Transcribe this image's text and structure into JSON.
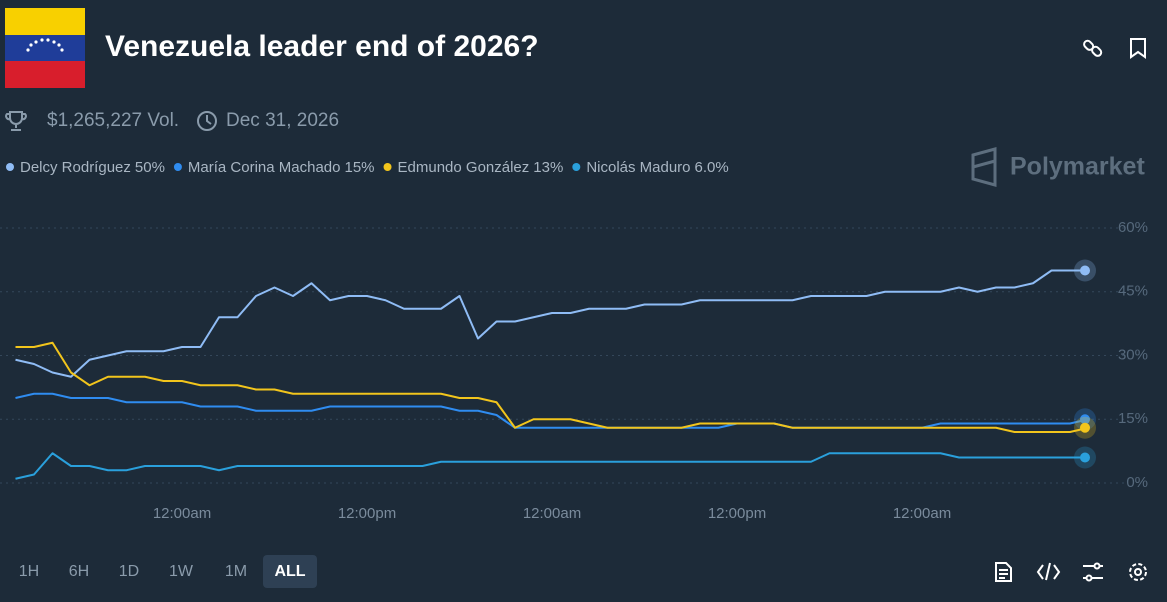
{
  "header": {
    "title": "Venezuela leader end of 2026?",
    "volume": "$1,265,227 Vol.",
    "end_date": "Dec 31, 2026"
  },
  "brand": "Polymarket",
  "time_ranges": [
    "1H",
    "6H",
    "1D",
    "1W",
    "1M",
    "ALL"
  ],
  "selected_range": "ALL",
  "chart_data": {
    "type": "line",
    "categories": [
      null,
      null,
      null,
      null,
      null,
      null,
      null,
      null,
      null,
      "12:00am",
      null,
      null,
      null,
      null,
      null,
      null,
      null,
      null,
      null,
      "12:00pm",
      null,
      null,
      null,
      null,
      null,
      null,
      null,
      null,
      null,
      "12:00am",
      null,
      null,
      null,
      null,
      null,
      null,
      null,
      null,
      null,
      "12:00pm",
      null,
      null,
      null,
      null,
      null,
      null,
      null,
      null,
      null,
      "12:00am",
      null,
      null,
      null,
      null,
      null,
      null,
      null,
      null,
      null
    ],
    "series": [
      {
        "name": "Delcy Rodríguez",
        "color": "#8fbcf5",
        "current": {
          "value": 50,
          "label": "50%"
        },
        "values": [
          29,
          28,
          26,
          25,
          29,
          30,
          31,
          31,
          31,
          32,
          32,
          39,
          39,
          44,
          46,
          44,
          47,
          43,
          44,
          44,
          43,
          41,
          41,
          41,
          44,
          34,
          38,
          38,
          39,
          40,
          40,
          41,
          41,
          41,
          42,
          42,
          42,
          43,
          43,
          43,
          43,
          43,
          43,
          44,
          44,
          44,
          44,
          45,
          45,
          45,
          45,
          46,
          45,
          46,
          46,
          47,
          50,
          50,
          50
        ]
      },
      {
        "name": "María Corina Machado",
        "color": "#2f8cf0",
        "current": {
          "value": 15,
          "label": "15%"
        },
        "values": [
          20,
          21,
          21,
          20,
          20,
          20,
          19,
          19,
          19,
          19,
          18,
          18,
          18,
          17,
          17,
          17,
          17,
          18,
          18,
          18,
          18,
          18,
          18,
          18,
          17,
          17,
          16,
          13,
          13,
          13,
          13,
          13,
          13,
          13,
          13,
          13,
          13,
          13,
          13,
          14,
          14,
          14,
          13,
          13,
          13,
          13,
          13,
          13,
          13,
          13,
          14,
          14,
          14,
          14,
          14,
          14,
          14,
          14,
          15
        ]
      },
      {
        "name": "Edmundo González",
        "color": "#f2c51c",
        "current": {
          "value": 13,
          "label": "13%"
        },
        "values": [
          32,
          32,
          33,
          26,
          23,
          25,
          25,
          25,
          24,
          24,
          23,
          23,
          23,
          22,
          22,
          21,
          21,
          21,
          21,
          21,
          21,
          21,
          21,
          21,
          20,
          20,
          19,
          13,
          15,
          15,
          15,
          14,
          13,
          13,
          13,
          13,
          13,
          14,
          14,
          14,
          14,
          14,
          13,
          13,
          13,
          13,
          13,
          13,
          13,
          13,
          13,
          13,
          13,
          13,
          12,
          12,
          12,
          12,
          13
        ]
      },
      {
        "name": "Nicolás Maduro",
        "color": "#2aa0dc",
        "current": {
          "value": 6,
          "label": "6.0%"
        },
        "values": [
          1,
          2,
          7,
          4,
          4,
          3,
          3,
          4,
          4,
          4,
          4,
          3,
          4,
          4,
          4,
          4,
          4,
          4,
          4,
          4,
          4,
          4,
          4,
          5,
          5,
          5,
          5,
          5,
          5,
          5,
          5,
          5,
          5,
          5,
          5,
          5,
          5,
          5,
          5,
          5,
          5,
          5,
          5,
          5,
          7,
          7,
          7,
          7,
          7,
          7,
          7,
          6,
          6,
          6,
          6,
          6,
          6,
          6,
          6
        ]
      }
    ],
    "ylim": [
      0,
      60
    ],
    "yticks": [
      {
        "value": 0,
        "label": "0%"
      },
      {
        "value": 15,
        "label": "15%"
      },
      {
        "value": 30,
        "label": "30%"
      },
      {
        "value": 45,
        "label": "45%"
      },
      {
        "value": 60,
        "label": "60%"
      }
    ],
    "grid": true
  }
}
